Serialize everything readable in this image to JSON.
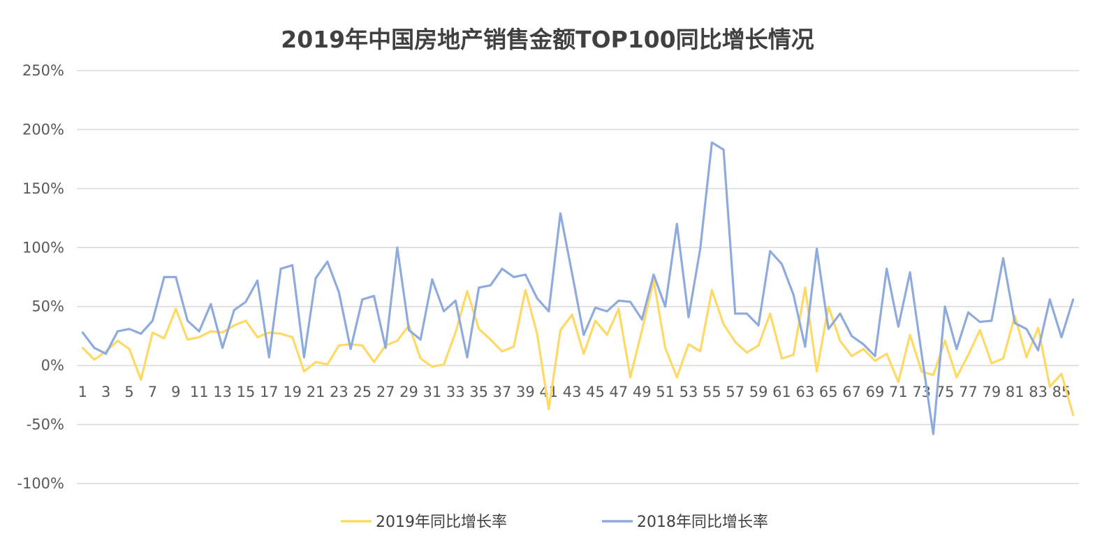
{
  "chart_data": {
    "type": "line",
    "title": "2019年中国房地产销售金额TOP100同比增长情况",
    "xlabel": "",
    "ylabel": "",
    "ylim": [
      -100,
      250
    ],
    "yticks": [
      "-100%",
      "-50%",
      "0%",
      "50%",
      "100%",
      "150%",
      "200%",
      "250%"
    ],
    "ytick_values": [
      -100,
      -50,
      0,
      50,
      100,
      150,
      200,
      250
    ],
    "grid": true,
    "legend": "bottom",
    "x": [
      1,
      2,
      3,
      4,
      5,
      6,
      7,
      8,
      9,
      10,
      11,
      12,
      13,
      14,
      15,
      16,
      17,
      18,
      19,
      20,
      21,
      22,
      23,
      24,
      25,
      26,
      27,
      28,
      29,
      30,
      31,
      32,
      33,
      34,
      35,
      36,
      37,
      38,
      39,
      40,
      41,
      42,
      43,
      44,
      45,
      46,
      47,
      48,
      49,
      50,
      51,
      52,
      53,
      54,
      55,
      56,
      57,
      58,
      59,
      60,
      61,
      62,
      63,
      64,
      65,
      66,
      67,
      68,
      69,
      70,
      71,
      72,
      73,
      74,
      75,
      76,
      77,
      78,
      79,
      80,
      81,
      82,
      83,
      84,
      85,
      86
    ],
    "xtick_labels": [
      "1",
      "3",
      "5",
      "7",
      "9",
      "11",
      "13",
      "15",
      "17",
      "19",
      "21",
      "23",
      "25",
      "27",
      "29",
      "31",
      "33",
      "35",
      "37",
      "39",
      "41",
      "43",
      "45",
      "47",
      "49",
      "51",
      "53",
      "55",
      "57",
      "59",
      "61",
      "63",
      "65",
      "67",
      "69",
      "71",
      "73",
      "75",
      "77",
      "79",
      "81",
      "83",
      "85"
    ],
    "series": [
      {
        "name": "2019年同比增长率",
        "color": "#FFD966",
        "values": [
          15,
          5,
          12,
          21,
          14,
          -12,
          28,
          23,
          48,
          22,
          24,
          29,
          28,
          34,
          38,
          24,
          28,
          27,
          24,
          -5,
          3,
          1,
          17,
          18,
          17,
          3,
          17,
          21,
          34,
          6,
          -1,
          1,
          28,
          63,
          31,
          22,
          12,
          16,
          64,
          27,
          -37,
          30,
          43,
          10,
          38,
          26,
          48,
          -10,
          30,
          72,
          15,
          -10,
          18,
          12,
          64,
          35,
          20,
          11,
          17,
          44,
          6,
          9,
          66,
          -5,
          50,
          21,
          8,
          14,
          4,
          10,
          -14,
          26,
          -5,
          -8,
          21,
          -10,
          9,
          30,
          2,
          6,
          42,
          7,
          32,
          -18,
          -7,
          -42
        ]
      },
      {
        "name": "2018年同比增长率",
        "color": "#8FAADC",
        "values": [
          28,
          15,
          10,
          29,
          31,
          27,
          38,
          75,
          75,
          38,
          29,
          52,
          15,
          47,
          54,
          72,
          7,
          82,
          85,
          7,
          74,
          88,
          62,
          14,
          56,
          59,
          15,
          100,
          30,
          22,
          73,
          46,
          55,
          7,
          66,
          68,
          82,
          75,
          77,
          57,
          46,
          129,
          78,
          26,
          49,
          46,
          55,
          54,
          39,
          77,
          50,
          120,
          41,
          99,
          189,
          183,
          44,
          44,
          34,
          97,
          86,
          60,
          16,
          99,
          31,
          44,
          25,
          18,
          8,
          82,
          33,
          79,
          10,
          -58,
          50,
          14,
          45,
          37,
          38,
          91,
          36,
          31,
          13,
          56,
          24,
          56
        ]
      }
    ]
  }
}
